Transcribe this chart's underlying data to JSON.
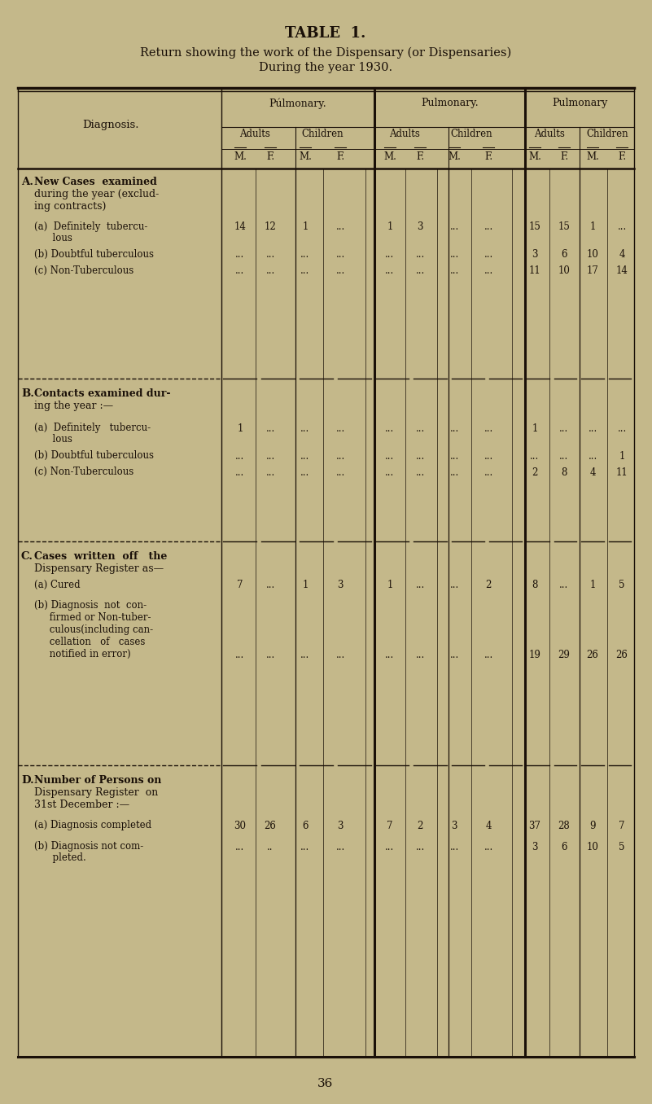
{
  "title": "TABLE  1.",
  "subtitle1": "Return showing the work of the Dispensary (or Dispensaries)",
  "subtitle2": "During the year 1930.",
  "bg_color": "#c4b88a",
  "text_color": "#1a1008",
  "col_groups": [
    "Púlmonary.",
    "Pulmonary.",
    "Pulmonary"
  ],
  "col_subgroups": [
    "Adults",
    "Children",
    "Adults",
    "Children",
    "Adults",
    "Children"
  ],
  "col_headers": [
    "M.",
    "F.",
    "M.",
    "F.",
    "M.",
    "F.",
    "M.",
    "F.",
    "M.",
    "F.",
    "M.",
    "F."
  ],
  "sections": [
    {
      "letter": "A.",
      "title_lines": [
        "New Cases  examined",
        "during the year (exclud-",
        "ing contracts)"
      ],
      "rows": [
        {
          "label_lines": [
            "(a)  Definitely  tubercu-",
            "      lous"
          ],
          "values": [
            "14",
            "12",
            "1",
            "...",
            "1",
            "3",
            "...",
            "...",
            "15",
            "15",
            "1",
            "..."
          ]
        },
        {
          "label_lines": [
            "(b) Doubtful tuberculous"
          ],
          "values": [
            "...",
            "...",
            "...",
            "...",
            "...",
            "...",
            "...",
            "...",
            "3",
            "6",
            "10",
            "4"
          ]
        },
        {
          "label_lines": [
            "(c) Non-Tuberculous"
          ],
          "values": [
            "...",
            "...",
            "...",
            "...",
            "...",
            "...",
            "...",
            "...",
            "11",
            "10",
            "17",
            "14"
          ]
        }
      ]
    },
    {
      "letter": "B.",
      "title_lines": [
        "Contacts examined dur-",
        "ing the year :—"
      ],
      "rows": [
        {
          "label_lines": [
            "(a)  Definitely   tubercu-",
            "      lous"
          ],
          "values": [
            "1",
            "...",
            "...",
            "...",
            "...",
            "...",
            "...",
            "...",
            "1",
            "...",
            "...",
            "..."
          ]
        },
        {
          "label_lines": [
            "(b) Doubtful tuberculous"
          ],
          "values": [
            "...",
            "...",
            "...",
            "...",
            "...",
            "...",
            "...",
            "...",
            "...",
            "...",
            "...",
            "1"
          ]
        },
        {
          "label_lines": [
            "(c) Non-Tuberculous"
          ],
          "values": [
            "...",
            "...",
            "...",
            "...",
            "...",
            "...",
            "...",
            "...",
            "2",
            "8",
            "4",
            "11"
          ]
        }
      ]
    },
    {
      "letter": "C.",
      "title_lines": [
        "Cases  written  off   the",
        "Dispensary Register as—"
      ],
      "rows": [
        {
          "label_lines": [
            "(a) Cured"
          ],
          "values": [
            "7",
            "...",
            "1",
            "3",
            "1",
            "...",
            "...",
            "2",
            "8",
            "...",
            "1",
            "5"
          ]
        },
        {
          "label_lines": [
            "(b) Diagnosis  not  con-",
            "     firmed or Non-tuber-",
            "     culous(including can-",
            "     cellation   of   cases",
            "     notified in error)"
          ],
          "values": [
            "...",
            "...",
            "...",
            "...",
            "...",
            "...",
            "...",
            "...",
            "19",
            "29",
            "26",
            "26"
          ]
        }
      ]
    },
    {
      "letter": "D.",
      "title_lines": [
        "Number of Persons on",
        "Dispensary Register  on",
        "31st December :—"
      ],
      "rows": [
        {
          "label_lines": [
            "(a) Diagnosis completed"
          ],
          "values": [
            "30",
            "26",
            "6",
            "3",
            "7",
            "2",
            "3",
            "4",
            "37",
            "28",
            "9",
            "7"
          ]
        },
        {
          "label_lines": [
            "(b) Diagnosis not com-",
            "      pleted."
          ],
          "values": [
            "...",
            "..",
            "...",
            "...",
            "...",
            "...",
            "...",
            "...",
            "3",
            "6",
            "10",
            "5"
          ]
        }
      ]
    }
  ],
  "footer": "36"
}
